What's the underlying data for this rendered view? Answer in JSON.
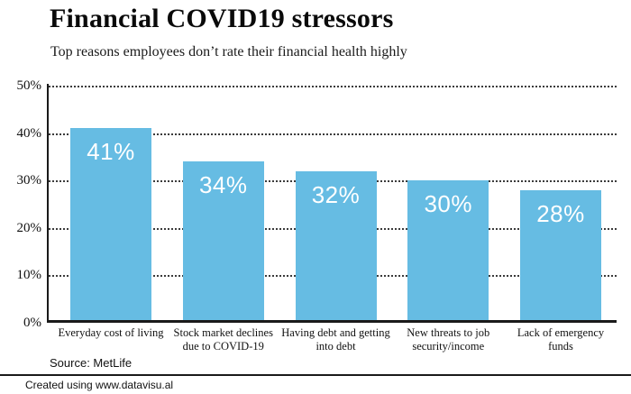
{
  "header": {
    "title": "Financial COVID19 stressors",
    "subtitle": "Top reasons employees don’t rate their financial health highly"
  },
  "chart_data": {
    "type": "bar",
    "title": "Financial COVID19 stressors",
    "subtitle": "Top reasons employees don’t rate their financial health highly",
    "categories": [
      "Everyday cost of living",
      "Stock market declines\ndue to COVID-19",
      "Having debt and getting\ninto debt",
      "New threats to job\nsecurity/income",
      "Lack of emergency\nfunds"
    ],
    "values": [
      41,
      34,
      32,
      30,
      28
    ],
    "value_labels": [
      "41%",
      "34%",
      "32%",
      "30%",
      "28%"
    ],
    "xlabel": "",
    "ylabel": "",
    "ylim": [
      0,
      50
    ],
    "ytick_values": [
      50,
      40,
      30,
      20,
      10,
      0
    ],
    "ytick_labels": [
      "50%",
      "40%",
      "30%",
      "20%",
      "10%",
      "0%"
    ],
    "grid": "horizontal-dotted",
    "legend": "none",
    "bar_color": "#66BCE3",
    "value_label_color": "#FFFFFF",
    "axis_color": "#1a1a1a"
  },
  "source": {
    "label": "Source: MetLife"
  },
  "footer": {
    "label": "Created using www.datavisu.al"
  }
}
